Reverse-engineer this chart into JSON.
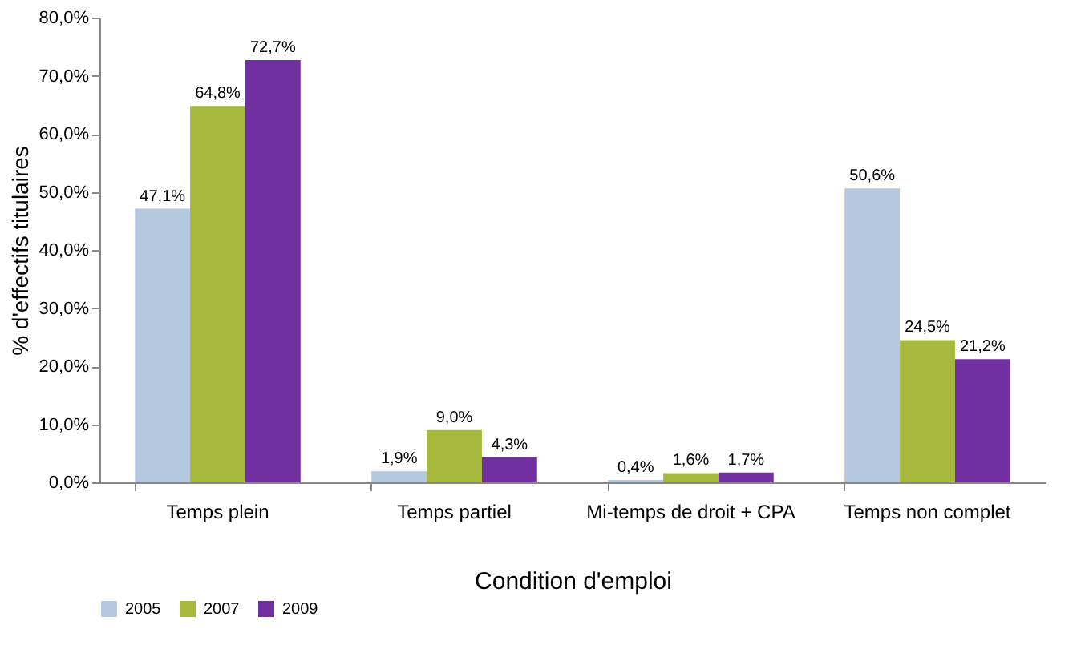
{
  "chart_data": {
    "type": "bar",
    "xlabel": "Condition d'emploi",
    "ylabel": "% d'effectifs titulaires",
    "categories": [
      "Temps plein",
      "Temps partiel",
      "Mi-temps de droit + CPA",
      "Temps non complet"
    ],
    "series": [
      {
        "name": "2005",
        "color": "#b4c8df",
        "values": [
          47.1,
          1.9,
          0.4,
          50.6
        ],
        "value_labels": [
          "47,1%",
          "1,9%",
          "0,4%",
          "50,6%"
        ]
      },
      {
        "name": "2007",
        "color": "#a6b93d",
        "values": [
          64.8,
          9.0,
          1.6,
          24.5
        ],
        "value_labels": [
          "64,8%",
          "9,0%",
          "1,6%",
          "24,5%"
        ]
      },
      {
        "name": "2009",
        "color": "#7030a0",
        "values": [
          72.7,
          4.3,
          1.7,
          21.2
        ],
        "value_labels": [
          "72,7%",
          "4,3%",
          "1,7%",
          "21,2%"
        ]
      }
    ],
    "ylim": [
      0,
      80
    ],
    "yticks": [
      {
        "value": 0,
        "label": "0,0%"
      },
      {
        "value": 10,
        "label": "10,0%"
      },
      {
        "value": 20,
        "label": "20,0%"
      },
      {
        "value": 30,
        "label": "30,0%"
      },
      {
        "value": 40,
        "label": "40,0%"
      },
      {
        "value": 50,
        "label": "50,0%"
      },
      {
        "value": 60,
        "label": "60,0%"
      },
      {
        "value": 70,
        "label": "70,0%"
      },
      {
        "value": 80,
        "label": "80,0%"
      }
    ],
    "grid": false,
    "legend": "bottom"
  }
}
